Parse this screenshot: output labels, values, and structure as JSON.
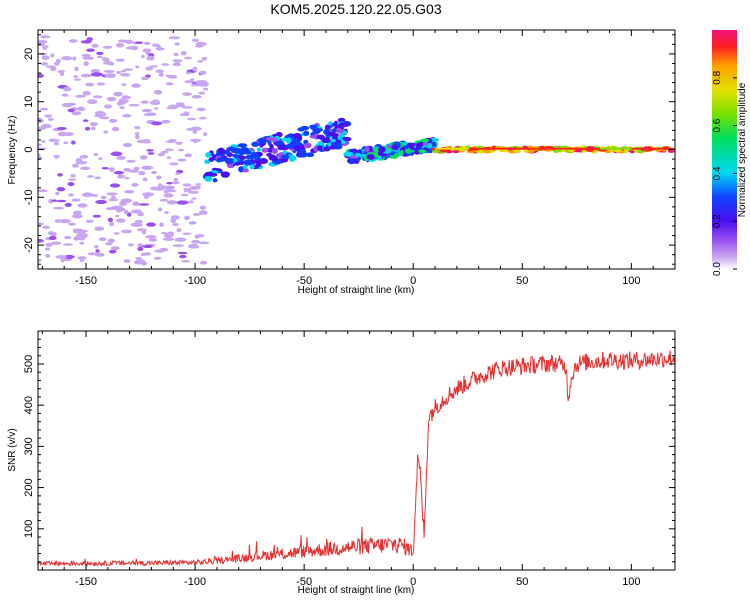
{
  "title": "KOM5.2025.120.22.05.G03",
  "colors": {
    "snr_line": "#e53030",
    "colormap": [
      "#ffffff",
      "#c9a6f2",
      "#9a50ef",
      "#4a0fef",
      "#1040ff",
      "#00d7f5",
      "#00e05a",
      "#7ce000",
      "#e3e000",
      "#ffa000",
      "#ff2020",
      "#f0107a"
    ]
  },
  "chart_data": [
    {
      "type": "heatmap",
      "name": "spectrogram",
      "xlabel": "Height of straight line (km)",
      "ylabel": "Frequency (Hz)",
      "xlim": [
        -172,
        120
      ],
      "ylim": [
        -25,
        25
      ],
      "xticks": [
        -150,
        -100,
        -50,
        0,
        50,
        100
      ],
      "yticks": [
        -20,
        -10,
        0,
        10,
        20
      ],
      "colorbar": {
        "label": "Normalized spectral amplitude",
        "range": [
          0,
          1
        ],
        "ticks": [
          "0.0",
          "0.2",
          "0.4",
          "0.6",
          "0.8"
        ]
      },
      "description_segments": [
        {
          "x": [
            -172,
            -95
          ],
          "freq_spread": 24,
          "amplitude": [
            0.05,
            0.15
          ]
        },
        {
          "x": [
            -95,
            -30
          ],
          "freq_center": [
            -4,
            4
          ],
          "amplitude": [
            0.2,
            0.45
          ]
        },
        {
          "x": [
            -30,
            10
          ],
          "freq_center": [
            -1.5,
            1
          ],
          "amplitude": [
            0.2,
            0.55
          ]
        },
        {
          "x": [
            10,
            120
          ],
          "freq_center": [
            0,
            0
          ],
          "amplitude": [
            0.6,
            1.0
          ]
        }
      ]
    },
    {
      "type": "line",
      "name": "snr",
      "xlabel": "Height of straight line (km)",
      "ylabel": "SNR (v/v)",
      "xlim": [
        -172,
        120
      ],
      "ylim": [
        0,
        580
      ],
      "xticks": [
        -150,
        -100,
        -50,
        0,
        50,
        100
      ],
      "yticks": [
        100,
        200,
        300,
        400,
        500
      ],
      "series": [
        {
          "x": [
            -172,
            -150,
            -120,
            -100,
            -90,
            -80,
            -70,
            -60,
            -50,
            -40,
            -30,
            -20,
            -10,
            -5,
            0,
            2,
            3,
            5,
            7,
            10,
            15,
            20,
            30,
            40,
            50,
            60,
            65,
            70,
            71,
            73,
            75,
            80,
            90,
            100,
            110,
            120
          ],
          "y": [
            15,
            16,
            17,
            18,
            22,
            28,
            35,
            38,
            45,
            50,
            55,
            58,
            62,
            60,
            45,
            265,
            250,
            80,
            370,
            395,
            420,
            440,
            470,
            490,
            495,
            500,
            502,
            495,
            420,
            480,
            500,
            505,
            510,
            508,
            512,
            515
          ]
        }
      ]
    }
  ]
}
